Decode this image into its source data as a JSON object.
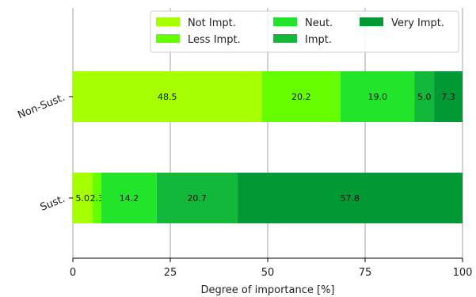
{
  "chart_data": {
    "type": "bar",
    "orientation": "horizontal",
    "stacked": true,
    "xlabel": "Degree of importance [%]",
    "xlim": [
      0,
      100
    ],
    "xticks": [
      0,
      25,
      50,
      75,
      100
    ],
    "xtick_labels": [
      "0",
      "25",
      "50",
      "75",
      "100"
    ],
    "grid": "vertical",
    "legend_position": "top-right",
    "categories": [
      "Non-Sust.",
      "Sust."
    ],
    "series": [
      {
        "name": "Not Impt.",
        "color": "#a6ff00",
        "values": [
          48.5,
          5.0
        ],
        "labels": [
          "48.5",
          "5.0"
        ]
      },
      {
        "name": "Less Impt.",
        "color": "#66ff00",
        "values": [
          20.2,
          2.3
        ],
        "labels": [
          "20.2",
          "2.3"
        ]
      },
      {
        "name": "Neut.",
        "color": "#22e52b",
        "values": [
          19.0,
          14.2
        ],
        "labels": [
          "19.0",
          "14.2"
        ]
      },
      {
        "name": "Impt.",
        "color": "#12b83a",
        "values": [
          5.0,
          20.7
        ],
        "labels": [
          "5.0",
          "20.7"
        ]
      },
      {
        "name": "Very Impt.",
        "color": "#009933",
        "values": [
          7.3,
          57.8
        ],
        "labels": [
          "7.3",
          "57.8"
        ]
      }
    ]
  }
}
